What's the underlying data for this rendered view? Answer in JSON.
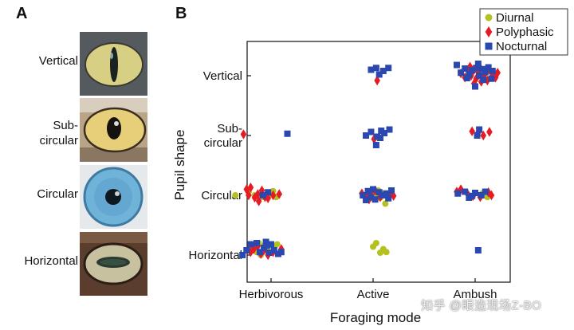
{
  "panel_a": {
    "letter": "A",
    "eyes": [
      {
        "label": "Vertical",
        "pupil": "vertical",
        "iris_color": "#d6cf84",
        "surround": "#4a4f55"
      },
      {
        "label": "Sub-\ncircular",
        "pupil": "subcircular",
        "iris_color": "#e7cf7a",
        "surround": "#b9a487"
      },
      {
        "label": "Circular",
        "pupil": "circular",
        "iris_color": "#6fb3d9",
        "surround": "#e6e9ec"
      },
      {
        "label": "Horizontal",
        "pupil": "horizontal",
        "iris_color": "#c8c1a0",
        "surround": "#5a3d2c"
      }
    ]
  },
  "panel_b": {
    "letter": "B"
  },
  "chart_data": {
    "type": "scatter",
    "xlabel": "Foraging mode",
    "ylabel": "Pupil shape",
    "categories_x": [
      "Herbivorous",
      "Active",
      "Ambush"
    ],
    "categories_y": [
      "Horizontal",
      "Circular",
      "Sub-\ncircular",
      "Vertical"
    ],
    "legend_position": "top-right",
    "series": [
      {
        "name": "Diurnal",
        "marker": "circle",
        "color": "#b5c11f",
        "points": [
          [
            0.65,
            1.0
          ],
          [
            0.78,
            1.06
          ],
          [
            0.84,
            1.0
          ],
          [
            0.91,
            0.97
          ],
          [
            0.99,
            1.01
          ],
          [
            1.02,
            1.07
          ],
          [
            1.05,
            0.97
          ],
          [
            0.84,
            0.1
          ],
          [
            0.86,
            0.05
          ],
          [
            0.88,
            0.2
          ],
          [
            0.9,
            0.0
          ],
          [
            0.94,
            0.17
          ],
          [
            0.97,
            0.06
          ],
          [
            1.02,
            0.14
          ],
          [
            1.06,
            0.18
          ],
          [
            0.96,
            0.09
          ],
          [
            0.82,
            0.12
          ],
          [
            1.99,
            1.05
          ],
          [
            2.03,
            1.0
          ],
          [
            2.07,
            0.96
          ],
          [
            2.1,
            1.03
          ],
          [
            2.12,
            0.86
          ],
          [
            1.98,
            0.96
          ],
          [
            2.05,
            1.08
          ],
          [
            2.03,
            0.2
          ],
          [
            2.1,
            0.1
          ],
          [
            2.0,
            0.14
          ],
          [
            2.07,
            0.04
          ],
          [
            2.13,
            0.05
          ],
          [
            3.12,
            0.97
          ],
          [
            3.07,
            1.03
          ]
        ]
      },
      {
        "name": "Polyphasic",
        "marker": "diamond",
        "color": "#e51c23",
        "points": [
          [
            0.76,
            1.1
          ],
          [
            0.78,
            1.0
          ],
          [
            0.8,
            1.13
          ],
          [
            0.84,
            0.96
          ],
          [
            0.87,
            1.02
          ],
          [
            0.91,
            1.08
          ],
          [
            0.94,
            0.97
          ],
          [
            0.97,
            0.95
          ],
          [
            1.02,
            1.0
          ],
          [
            1.08,
            1.02
          ],
          [
            0.88,
            0.9
          ],
          [
            0.8,
            0.05
          ],
          [
            0.83,
            0.1
          ],
          [
            0.87,
            0.15
          ],
          [
            0.93,
            0.08
          ],
          [
            0.97,
            0.0
          ],
          [
            1.02,
            0.05
          ],
          [
            1.1,
            0.1
          ],
          [
            0.9,
            0.02
          ],
          [
            0.73,
            2.02
          ],
          [
            1.89,
            1.03
          ],
          [
            1.94,
            0.98
          ],
          [
            1.98,
            1.05
          ],
          [
            2.02,
            1.08
          ],
          [
            2.07,
            0.97
          ],
          [
            2.13,
            1.0
          ],
          [
            2.17,
            1.04
          ],
          [
            2.2,
            0.99
          ],
          [
            1.96,
            0.93
          ],
          [
            2.04,
            2.92
          ],
          [
            2.01,
            1.94
          ],
          [
            2.82,
            1.06
          ],
          [
            2.86,
            1.1
          ],
          [
            2.93,
            1.01
          ],
          [
            2.98,
            0.99
          ],
          [
            3.05,
            0.97
          ],
          [
            3.13,
            1.05
          ],
          [
            3.16,
            1.0
          ],
          [
            2.97,
            2.07
          ],
          [
            3.03,
            2.05
          ],
          [
            3.08,
            2.0
          ],
          [
            3.14,
            2.06
          ],
          [
            2.86,
            3.04
          ],
          [
            2.9,
            2.97
          ],
          [
            2.93,
            3.1
          ],
          [
            2.96,
            3.0
          ],
          [
            2.98,
            3.08
          ],
          [
            3.01,
            2.95
          ],
          [
            3.03,
            3.06
          ],
          [
            3.05,
            3.13
          ],
          [
            3.08,
            2.99
          ],
          [
            3.1,
            3.04
          ],
          [
            3.12,
            2.92
          ],
          [
            3.14,
            3.1
          ],
          [
            3.17,
            3.01
          ],
          [
            3.2,
            2.97
          ],
          [
            3.22,
            3.05
          ],
          [
            2.95,
            3.15
          ],
          [
            3.06,
            2.9
          ],
          [
            2.99,
            2.87
          ]
        ]
      },
      {
        "name": "Nocturnal",
        "marker": "square",
        "color": "#2b48b0",
        "points": [
          [
            0.72,
            0.0
          ],
          [
            0.76,
            0.08
          ],
          [
            0.8,
            0.18
          ],
          [
            0.86,
            0.2
          ],
          [
            0.89,
            0.05
          ],
          [
            0.93,
            0.12
          ],
          [
            0.96,
            0.16
          ],
          [
            0.98,
            0.04
          ],
          [
            1.03,
            0.08
          ],
          [
            1.07,
            0.02
          ],
          [
            1.1,
            0.05
          ],
          [
            0.95,
            0.22
          ],
          [
            1.0,
            0.18
          ],
          [
            0.92,
            1.0
          ],
          [
            0.97,
            1.05
          ],
          [
            1.16,
            2.03
          ],
          [
            1.9,
            1.0
          ],
          [
            1.95,
            1.07
          ],
          [
            1.98,
            0.97
          ],
          [
            2.02,
            0.93
          ],
          [
            2.06,
            1.05
          ],
          [
            2.09,
            1.0
          ],
          [
            2.13,
            1.03
          ],
          [
            2.15,
            0.95
          ],
          [
            2.18,
            1.08
          ],
          [
            1.93,
            0.92
          ],
          [
            2.0,
            1.1
          ],
          [
            1.93,
            2.0
          ],
          [
            1.98,
            2.06
          ],
          [
            2.04,
            1.98
          ],
          [
            2.08,
            2.08
          ],
          [
            2.11,
            2.04
          ],
          [
            2.16,
            2.1
          ],
          [
            2.07,
            1.96
          ],
          [
            2.03,
            1.84
          ],
          [
            1.98,
            3.1
          ],
          [
            2.03,
            3.13
          ],
          [
            2.1,
            3.08
          ],
          [
            2.15,
            3.13
          ],
          [
            2.06,
            3.02
          ],
          [
            2.83,
            1.03
          ],
          [
            2.9,
            1.06
          ],
          [
            2.97,
            0.99
          ],
          [
            3.0,
            1.04
          ],
          [
            3.06,
            1.0
          ],
          [
            3.1,
            1.06
          ],
          [
            2.94,
            0.96
          ],
          [
            3.04,
            2.1
          ],
          [
            3.02,
            2.0
          ],
          [
            2.82,
            3.18
          ],
          [
            2.86,
            3.05
          ],
          [
            2.9,
            3.12
          ],
          [
            2.94,
            3.02
          ],
          [
            2.97,
            3.09
          ],
          [
            3.01,
            3.13
          ],
          [
            3.04,
            3.0
          ],
          [
            3.07,
            3.11
          ],
          [
            3.1,
            3.06
          ],
          [
            3.13,
            3.14
          ],
          [
            3.17,
            3.08
          ],
          [
            3.0,
            2.82
          ],
          [
            3.03,
            3.2
          ],
          [
            3.16,
            2.95
          ],
          [
            2.92,
            2.96
          ],
          [
            3.08,
            2.93
          ],
          [
            3.03,
            0.08
          ]
        ]
      }
    ]
  },
  "watermark": "知乎 @眼造现场Z-BO"
}
